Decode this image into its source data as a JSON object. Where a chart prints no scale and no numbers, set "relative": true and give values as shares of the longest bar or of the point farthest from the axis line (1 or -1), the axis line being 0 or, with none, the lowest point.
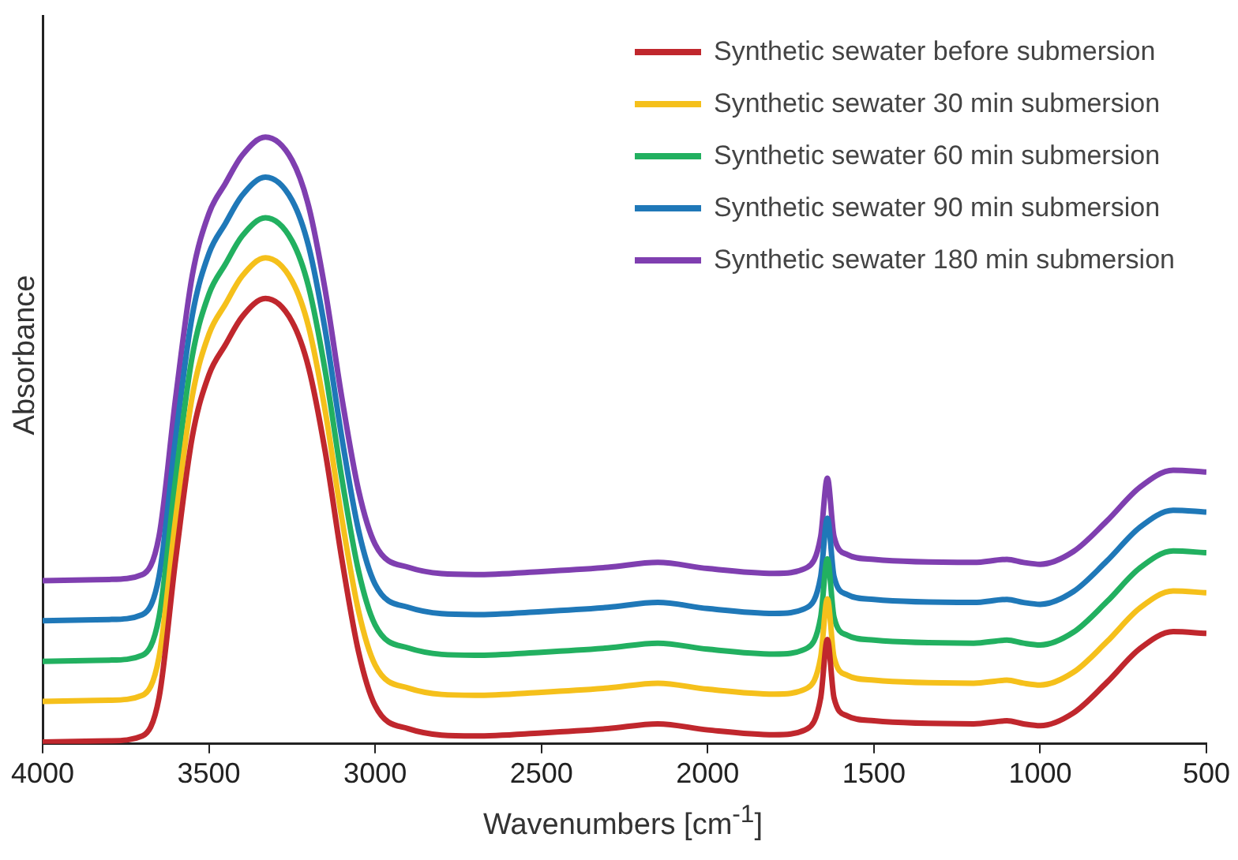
{
  "chart_data": {
    "type": "line",
    "relative": true,
    "xlabel": "Wavenumbers [cm$^{-1}$]",
    "ylabel": "Absorbance",
    "x": [
      4000,
      3800,
      3700,
      3650,
      3600,
      3550,
      3500,
      3450,
      3400,
      3330,
      3250,
      3200,
      3150,
      3100,
      3050,
      3000,
      2900,
      2700,
      2500,
      2300,
      2150,
      2000,
      1800,
      1700,
      1660,
      1640,
      1620,
      1580,
      1500,
      1200,
      1100,
      1050,
      1000,
      900,
      800,
      700,
      600,
      500
    ],
    "xlim": [
      4000,
      500
    ],
    "xticks": [
      4000,
      3500,
      3000,
      2500,
      2000,
      1500,
      1000,
      500
    ],
    "grid": false,
    "legend": "top right",
    "marker": "none",
    "line_style": "solid",
    "series": [
      {
        "name": "Synthetic sewater before submersion",
        "color": "#c0272d",
        "values": [
          0.003,
          0.005,
          0.013,
          0.076,
          0.304,
          0.506,
          0.608,
          0.658,
          0.704,
          0.734,
          0.696,
          0.62,
          0.481,
          0.304,
          0.152,
          0.063,
          0.025,
          0.013,
          0.018,
          0.025,
          0.033,
          0.023,
          0.015,
          0.025,
          0.076,
          0.172,
          0.076,
          0.046,
          0.038,
          0.033,
          0.038,
          0.033,
          0.03,
          0.051,
          0.101,
          0.157,
          0.185,
          0.182
        ]
      },
      {
        "name": "Synthetic sewater 30 min submersion",
        "color": "#f5c01b",
        "values": [
          0.07,
          0.072,
          0.08,
          0.143,
          0.371,
          0.573,
          0.675,
          0.725,
          0.771,
          0.801,
          0.763,
          0.687,
          0.548,
          0.371,
          0.219,
          0.13,
          0.092,
          0.08,
          0.085,
          0.092,
          0.1,
          0.09,
          0.082,
          0.092,
          0.143,
          0.239,
          0.143,
          0.113,
          0.105,
          0.1,
          0.105,
          0.1,
          0.097,
          0.118,
          0.168,
          0.224,
          0.252,
          0.249
        ]
      },
      {
        "name": "Synthetic sewater 60 min submersion",
        "color": "#22b060",
        "values": [
          0.136,
          0.138,
          0.146,
          0.209,
          0.437,
          0.639,
          0.741,
          0.791,
          0.837,
          0.867,
          0.829,
          0.753,
          0.614,
          0.437,
          0.285,
          0.196,
          0.158,
          0.146,
          0.151,
          0.158,
          0.166,
          0.156,
          0.148,
          0.158,
          0.209,
          0.305,
          0.209,
          0.179,
          0.171,
          0.166,
          0.171,
          0.166,
          0.163,
          0.184,
          0.234,
          0.29,
          0.318,
          0.315
        ]
      },
      {
        "name": "Synthetic sewater 90 min submersion",
        "color": "#1f78b8",
        "values": [
          0.203,
          0.205,
          0.213,
          0.276,
          0.504,
          0.706,
          0.808,
          0.858,
          0.904,
          0.934,
          0.896,
          0.82,
          0.681,
          0.504,
          0.352,
          0.263,
          0.225,
          0.213,
          0.218,
          0.225,
          0.233,
          0.223,
          0.215,
          0.225,
          0.276,
          0.372,
          0.276,
          0.246,
          0.238,
          0.233,
          0.238,
          0.233,
          0.23,
          0.251,
          0.301,
          0.357,
          0.385,
          0.382
        ]
      },
      {
        "name": "Synthetic sewater 180 min submersion",
        "color": "#7f3fb0",
        "values": [
          0.269,
          0.271,
          0.279,
          0.342,
          0.57,
          0.772,
          0.874,
          0.924,
          0.97,
          1.0,
          0.962,
          0.886,
          0.747,
          0.57,
          0.418,
          0.329,
          0.291,
          0.279,
          0.284,
          0.291,
          0.299,
          0.289,
          0.281,
          0.291,
          0.342,
          0.438,
          0.342,
          0.312,
          0.304,
          0.299,
          0.304,
          0.299,
          0.296,
          0.317,
          0.367,
          0.423,
          0.451,
          0.448
        ]
      }
    ]
  }
}
